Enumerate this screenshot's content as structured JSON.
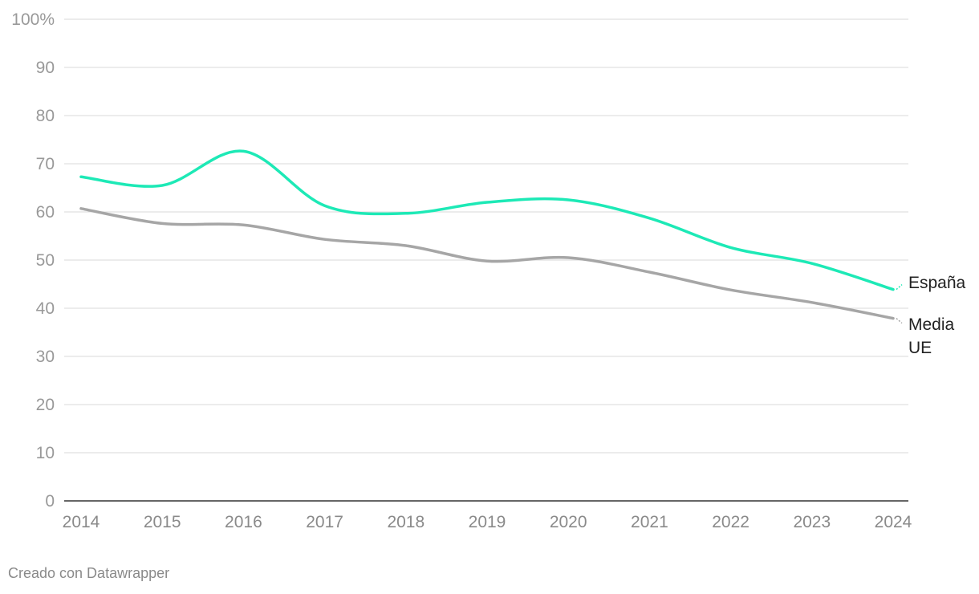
{
  "chart_data": {
    "type": "line",
    "x": [
      2014,
      2015,
      2016,
      2017,
      2018,
      2019,
      2020,
      2021,
      2022,
      2023,
      2024
    ],
    "series": [
      {
        "name": "España",
        "color": "#1de9b6",
        "values": [
          67.3,
          65.5,
          72.6,
          61.3,
          59.7,
          62.0,
          62.5,
          58.7,
          52.6,
          49.3,
          43.9
        ]
      },
      {
        "name": "Media UE",
        "color": "#a6a6a6",
        "values": [
          60.7,
          57.6,
          57.3,
          54.3,
          53.0,
          49.8,
          50.5,
          47.5,
          43.8,
          41.2,
          37.9
        ]
      }
    ],
    "ylim": [
      0,
      100
    ],
    "yticks": [
      "0",
      "10",
      "20",
      "30",
      "40",
      "50",
      "60",
      "70",
      "80",
      "90",
      "100%"
    ],
    "xticks": [
      "2014",
      "2015",
      "2016",
      "2017",
      "2018",
      "2019",
      "2020",
      "2021",
      "2022",
      "2023",
      "2024"
    ],
    "grid": true,
    "legend": "inline-right",
    "xlabel": "",
    "ylabel": ""
  },
  "footer": {
    "credit": "Creado con Datawrapper"
  }
}
